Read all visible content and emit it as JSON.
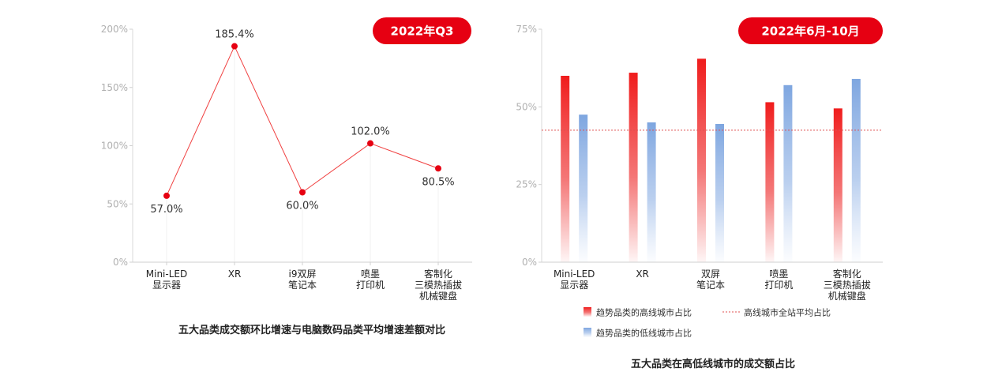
{
  "chart_data": [
    {
      "type": "line",
      "badge": "2022年Q3",
      "title": "五大品类成交额环比增速与电脑数码品类平均增速差额对比",
      "categories": [
        [
          "Mini-LED",
          "显示器"
        ],
        [
          "XR"
        ],
        [
          "i9双屏",
          "笔记本"
        ],
        [
          "喷墨",
          "打印机"
        ],
        [
          "客制化",
          "三模热插拔",
          "机械键盘"
        ]
      ],
      "values": [
        57.0,
        185.4,
        60.0,
        102.0,
        80.5
      ],
      "value_labels": [
        "57.0%",
        "185.4%",
        "60.0%",
        "102.0%",
        "80.5%"
      ],
      "ylim": [
        0,
        200
      ],
      "yticks": [
        0,
        50,
        100,
        150,
        200
      ],
      "ytick_labels": [
        "0%",
        "50%",
        "100%",
        "150%",
        "200%"
      ],
      "colors": {
        "line": "#f04040",
        "point": "#e60012"
      }
    },
    {
      "type": "bar",
      "badge": "2022年6月-10月",
      "title": "五大品类在高低线城市的成交额占比",
      "categories": [
        [
          "Mini-LED",
          "显示器"
        ],
        [
          "XR"
        ],
        [
          "双屏",
          "笔记本"
        ],
        [
          "喷墨",
          "打印机"
        ],
        [
          "客制化",
          "三模热插拔",
          "机械键盘"
        ]
      ],
      "series": [
        {
          "name": "趋势品类的高线城市占比",
          "values": [
            60.0,
            61.0,
            65.5,
            51.5,
            49.5
          ],
          "color": "#f01c1c"
        },
        {
          "name": "趋势品类的低线城市占比",
          "values": [
            47.5,
            45.0,
            44.5,
            57.0,
            59.0
          ],
          "color": "#7ea6e0"
        }
      ],
      "reference_line": {
        "name": "高线城市全站平均占比",
        "value": 42.5,
        "color": "#e05050"
      },
      "ylim": [
        0,
        75
      ],
      "yticks": [
        0,
        25,
        50,
        75
      ],
      "ytick_labels": [
        "0%",
        "25%",
        "50%",
        "75%"
      ]
    }
  ]
}
